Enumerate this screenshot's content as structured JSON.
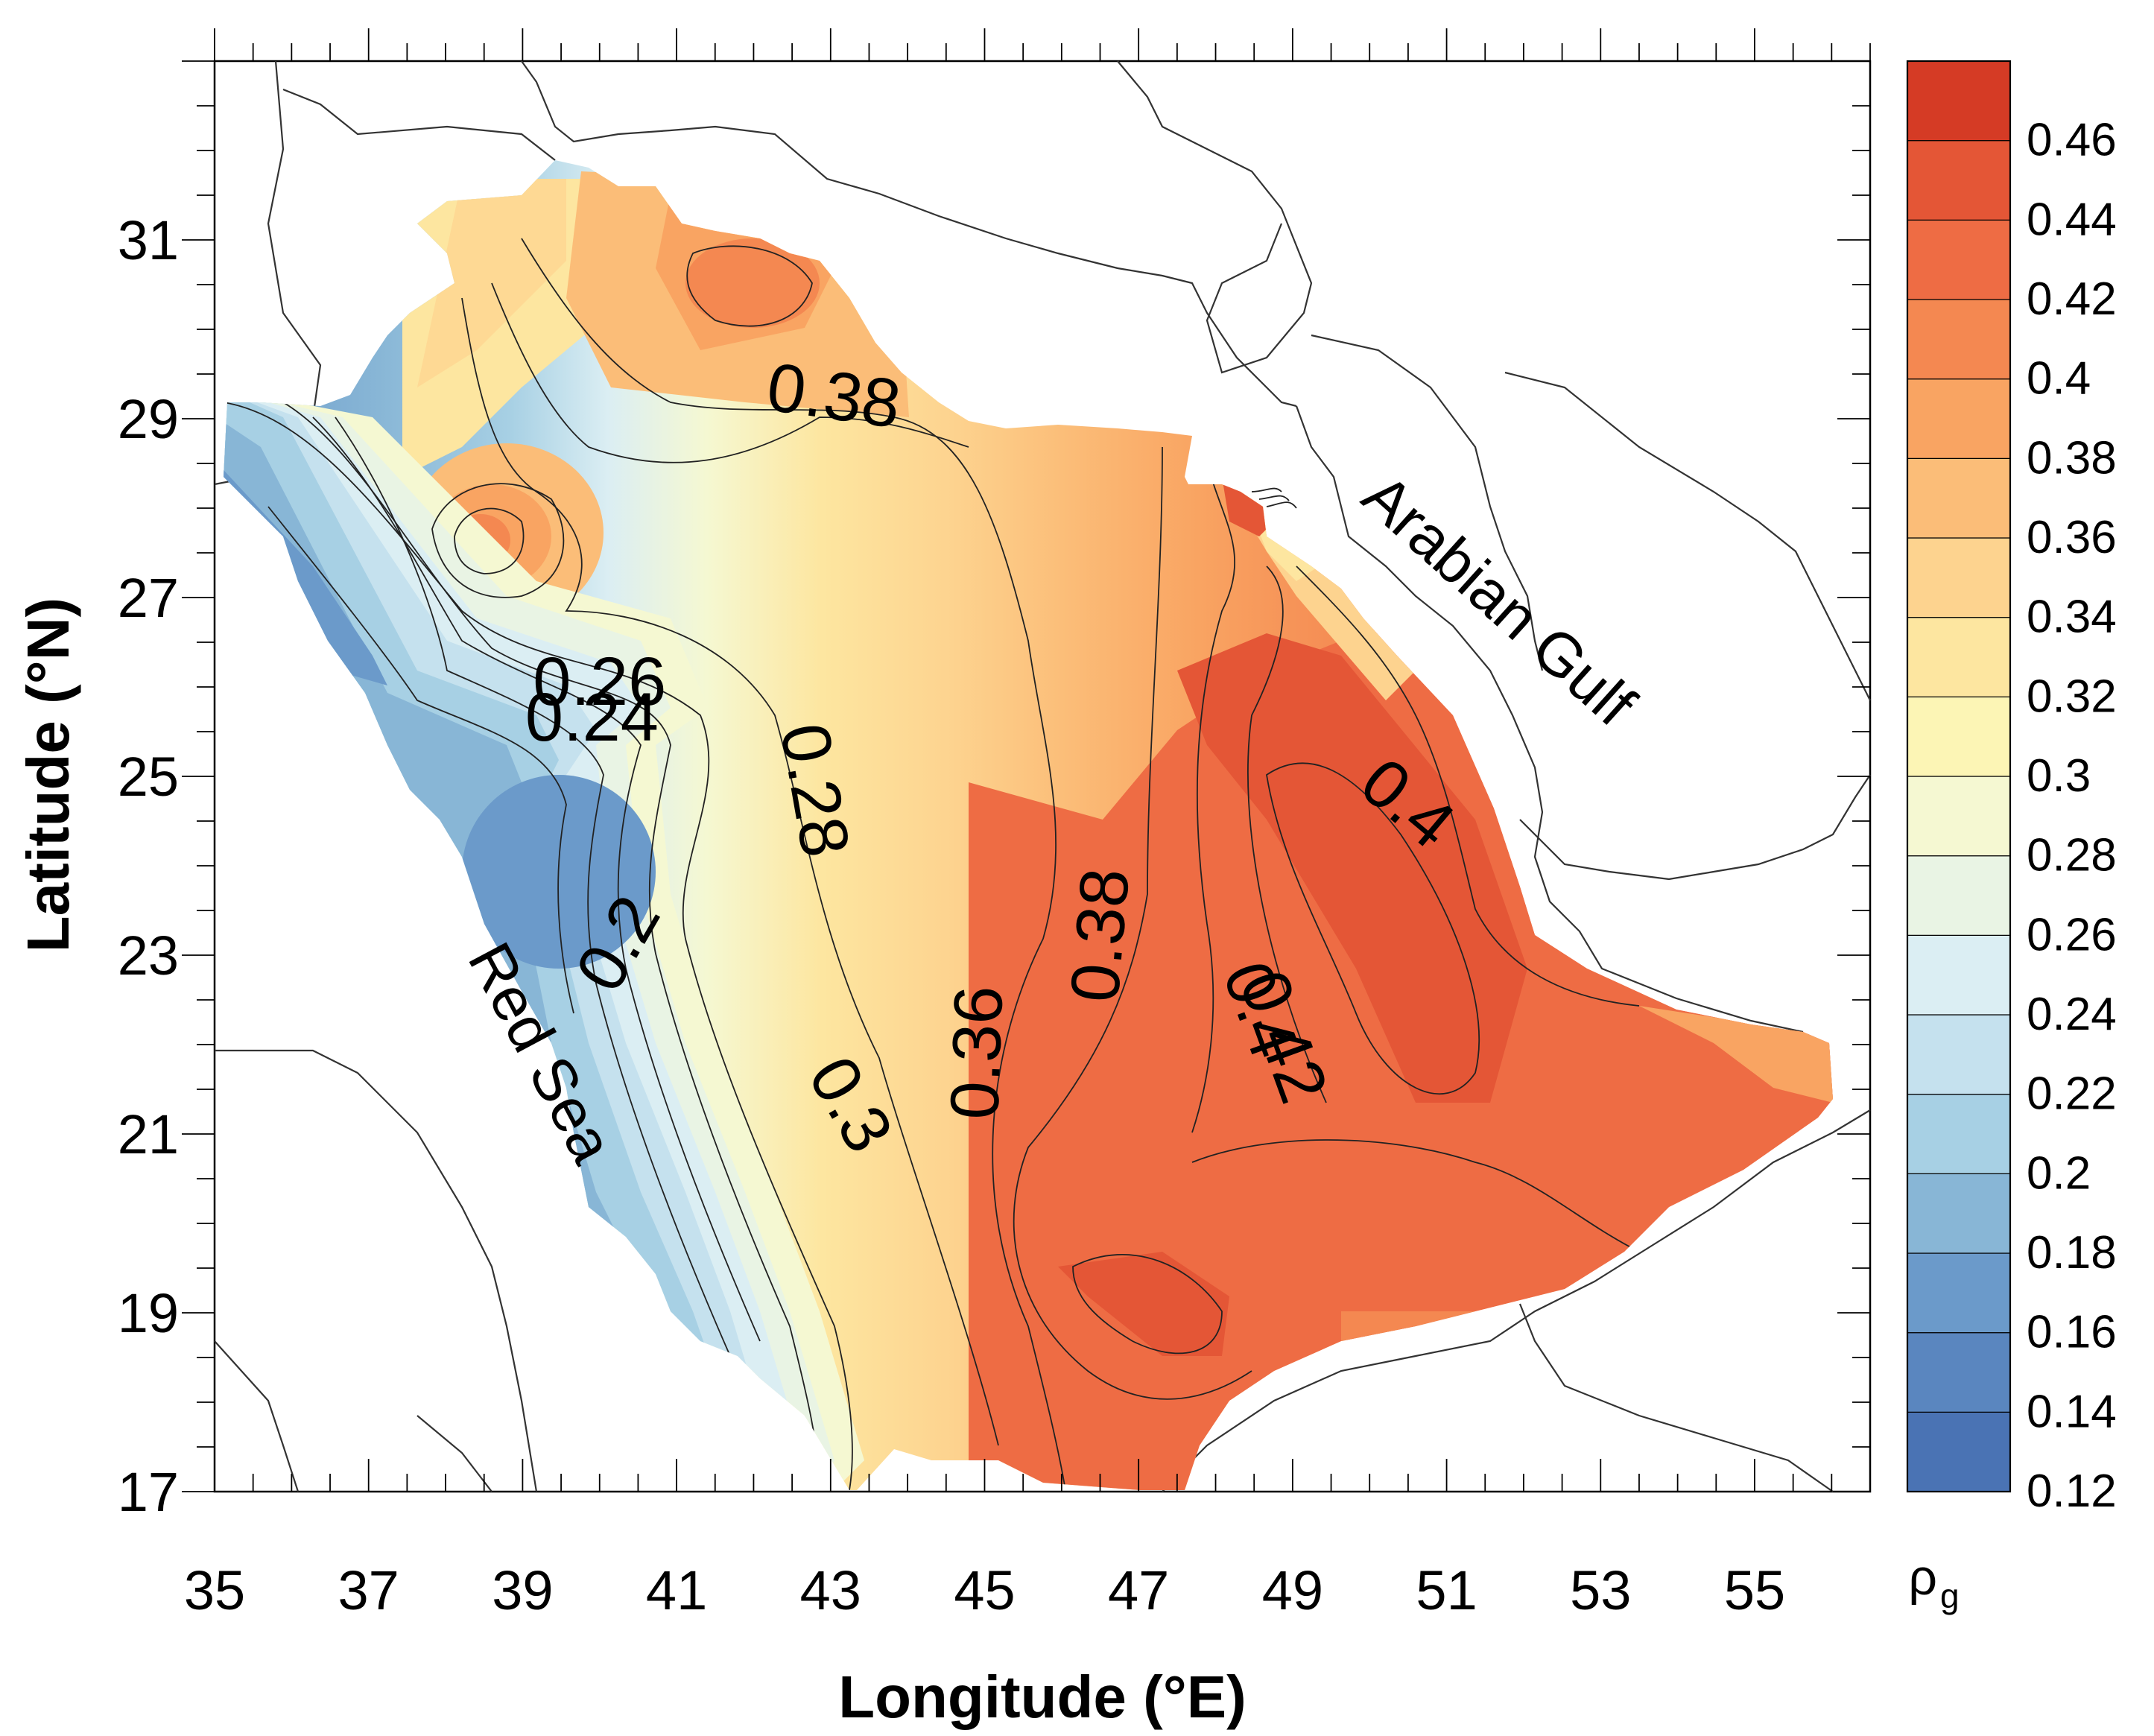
{
  "chart_data": {
    "type": "contour-map",
    "variable_symbol": "ρ",
    "variable_subscript": "g",
    "xlabel": "Longitude (°E)",
    "ylabel": "Latitude (°N)",
    "xlim": [
      35,
      56.5
    ],
    "ylim": [
      17,
      33
    ],
    "x_ticks": [
      "35",
      "37",
      "39",
      "41",
      "43",
      "45",
      "47",
      "49",
      "51",
      "53",
      "55"
    ],
    "y_ticks": [
      "17",
      "19",
      "21",
      "23",
      "25",
      "27",
      "29",
      "31"
    ],
    "colorbar": {
      "labels": [
        "0.12",
        "0.14",
        "0.16",
        "0.18",
        "0.2",
        "0.22",
        "0.24",
        "0.26",
        "0.28",
        "0.3",
        "0.32",
        "0.34",
        "0.36",
        "0.38",
        "0.4",
        "0.42",
        "0.44",
        "0.46"
      ],
      "colors": [
        "#4a73b4",
        "#5a86bf",
        "#6b9aca",
        "#88b6d6",
        "#a7d0e4",
        "#c5e1ee",
        "#dbeef3",
        "#e9f4e4",
        "#f5f8d2",
        "#fcf5b5",
        "#fde6a0",
        "#fdd38f",
        "#fbbd78",
        "#f9a462",
        "#f48851",
        "#ee6c44",
        "#e45636",
        "#d53b25"
      ]
    },
    "contour_labels": [
      {
        "text": "0.38",
        "lon": 43.0,
        "lat": 29.0
      },
      {
        "text": "0.26",
        "lon": 40.0,
        "lat": 25.8
      },
      {
        "text": "0.24",
        "lon": 39.9,
        "lat": 25.4
      },
      {
        "text": "0.28",
        "lon": 42.5,
        "lat": 24.8
      },
      {
        "text": "0.2",
        "lon": 40.5,
        "lat": 23.0
      },
      {
        "text": "0.3",
        "lon": 43.0,
        "lat": 21.2
      },
      {
        "text": "0.36",
        "lon": 45.2,
        "lat": 21.9
      },
      {
        "text": "0.38",
        "lon": 46.8,
        "lat": 23.2
      },
      {
        "text": "0.4",
        "lon": 48.3,
        "lat": 22.3
      },
      {
        "text": "0.42",
        "lon": 48.6,
        "lat": 22.0
      },
      {
        "text": "0.4",
        "lon": 50.3,
        "lat": 24.5
      }
    ],
    "sea_labels": [
      {
        "text": "Arabian Gulf",
        "lon": 51.5,
        "lat": 26.8
      },
      {
        "text": "Red Sea",
        "lon": 39.0,
        "lat": 21.8
      }
    ]
  }
}
